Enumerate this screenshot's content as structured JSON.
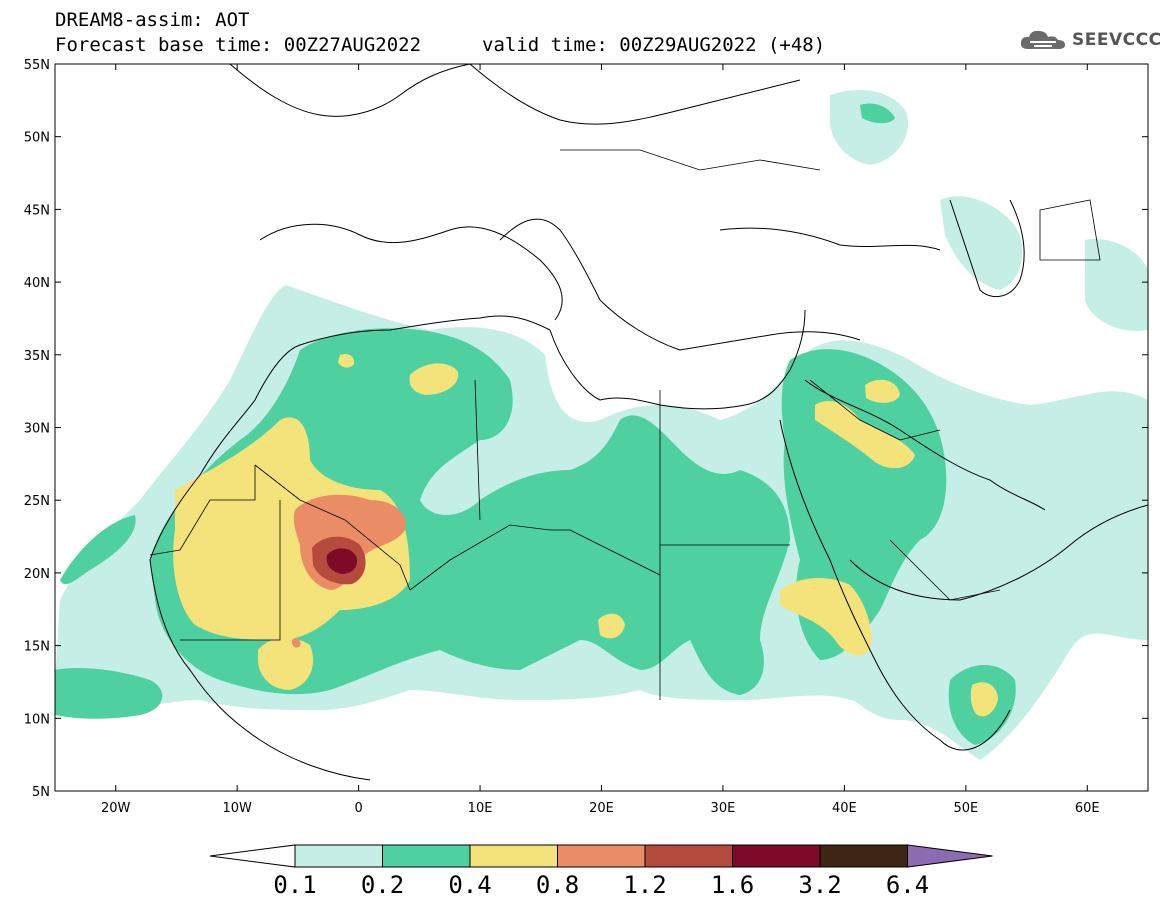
{
  "header": {
    "title": "DREAM8-assim: AOT",
    "base_time": "Forecast base time: 00Z27AUG2022",
    "valid_time": "valid time: 00Z29AUG2022 (+48)",
    "logo_text": "SEEVCCC"
  },
  "map": {
    "lon_range": [
      -25,
      65
    ],
    "lat_range": [
      5,
      55
    ],
    "lat_labels": [
      "55N",
      "50N",
      "45N",
      "40N",
      "35N",
      "30N",
      "25N",
      "20N",
      "15N",
      "10N",
      "5N"
    ],
    "lon_labels": [
      "20W",
      "10W",
      "0",
      "10E",
      "20E",
      "30E",
      "40E",
      "50E",
      "60E"
    ]
  },
  "colorbar": {
    "levels": [
      "0.1",
      "0.2",
      "0.4",
      "0.8",
      "1.2",
      "1.6",
      "3.2",
      "6.4"
    ],
    "colors": [
      "#ffffff",
      "#c4eee6",
      "#4fd0a0",
      "#f4e27a",
      "#ea8d66",
      "#b54a3e",
      "#7d0a26",
      "#3f2613",
      "#8c6bb1"
    ]
  },
  "colors": {
    "c1": "#c4eee6",
    "c2": "#4fd0a0",
    "c3": "#f4e27a",
    "c4": "#ea8d66",
    "c5": "#b54a3e",
    "c6": "#7d0a26"
  }
}
